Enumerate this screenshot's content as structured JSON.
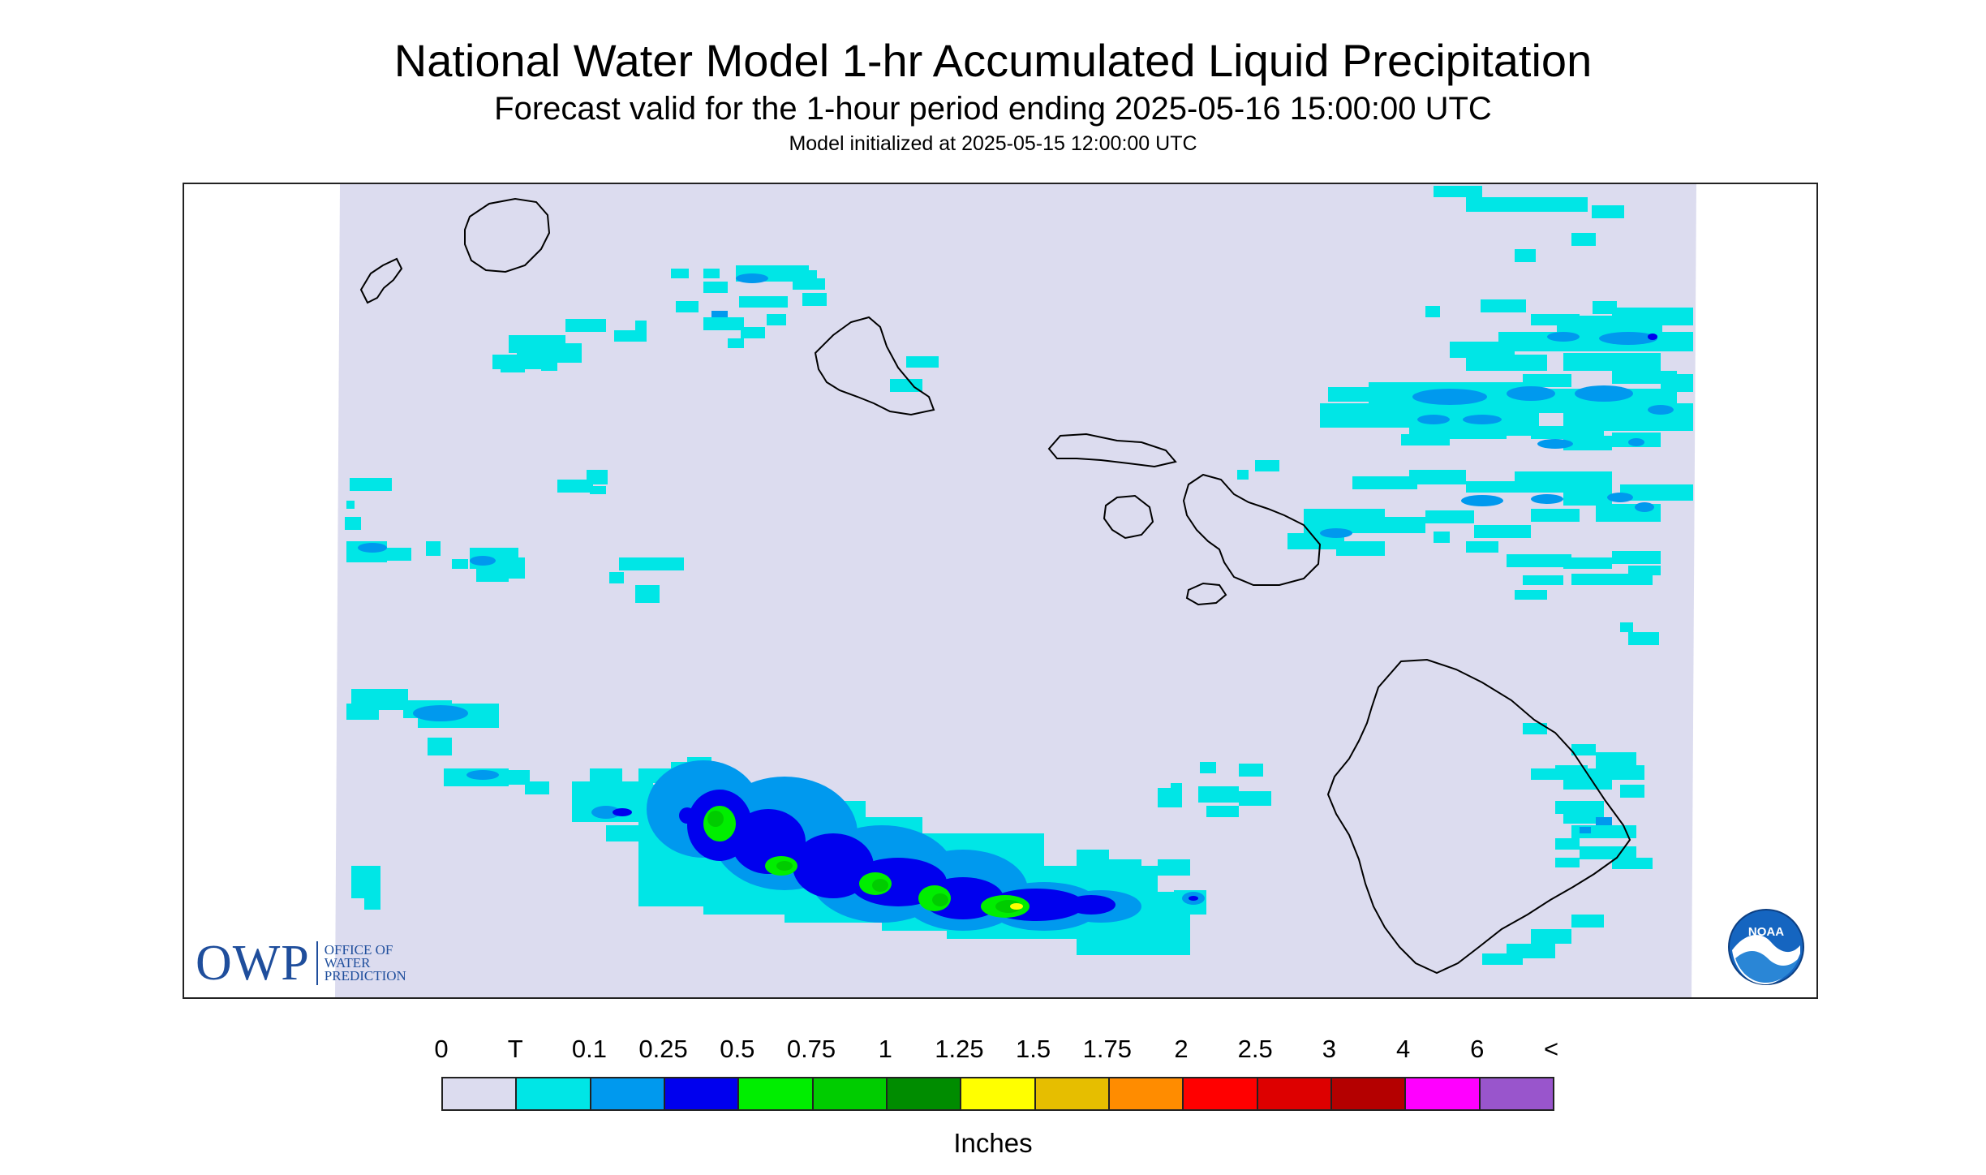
{
  "header": {
    "title": "National Water Model 1-hr Accumulated Liquid Precipitation",
    "subtitle": "Forecast valid for the 1-hour period ending 2025-05-16 15:00:00 UTC",
    "init": "Model initialized at 2025-05-15 12:00:00 UTC"
  },
  "logos": {
    "owp_mark": "OWP",
    "owp_line1": "OFFICE OF",
    "owp_line2": "WATER",
    "owp_line3": "PREDICTION",
    "noaa": "NOAA"
  },
  "legend": {
    "labels": [
      "0",
      "T",
      "0.1",
      "0.25",
      "0.5",
      "0.75",
      "1",
      "1.25",
      "1.5",
      "1.75",
      "2",
      "2.5",
      "3",
      "4",
      "6",
      "<"
    ],
    "colors": [
      "#dcdcef",
      "#00e6e6",
      "#0099ee",
      "#0000ee",
      "#00ee00",
      "#00cc00",
      "#008c00",
      "#ffff00",
      "#e6be00",
      "#ff8c00",
      "#ff0000",
      "#dd0000",
      "#b40000",
      "#ff00ff",
      "#9955cc"
    ],
    "unit": "Inches"
  },
  "colors": {
    "background_field": "#dcdcef",
    "frame": "#222222",
    "coastline": "#000000",
    "owp_blue": "#1f4e9c",
    "noaa_blue": "#1565c0"
  }
}
